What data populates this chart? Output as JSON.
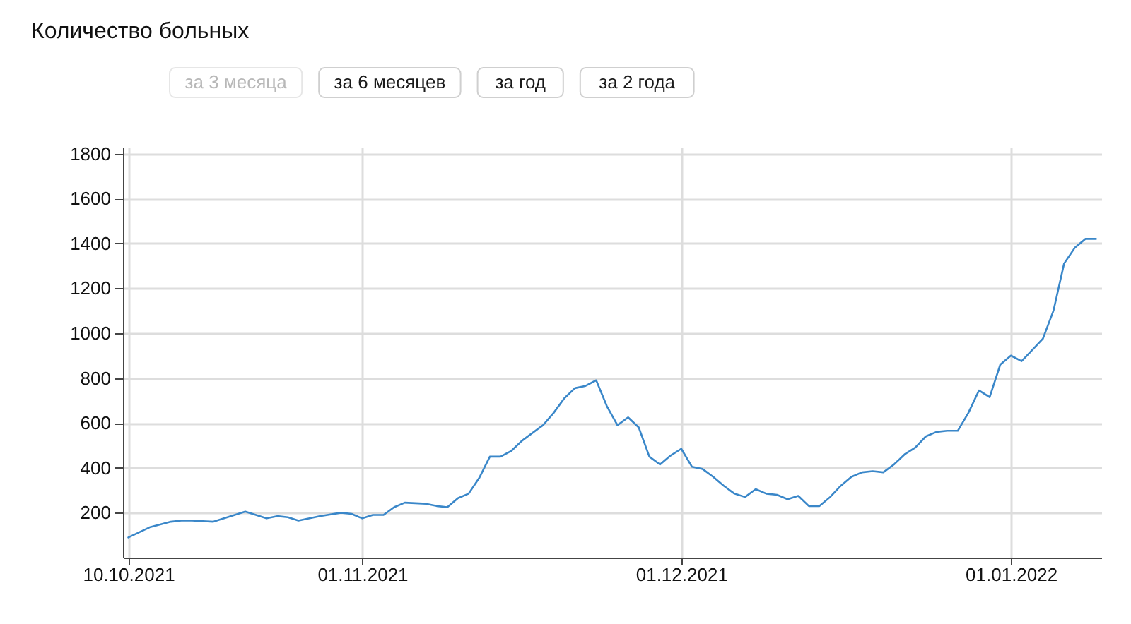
{
  "chart_data": {
    "type": "line",
    "title": "Количество больных",
    "annotations": [
      "за 3 месяца",
      "за 6 месяцев",
      "за год",
      "за 2 года"
    ],
    "x": [
      "2021-10-10",
      "2021-10-12",
      "2021-10-14",
      "2021-10-15",
      "2021-10-16",
      "2021-10-18",
      "2021-10-19",
      "2021-10-21",
      "2021-10-23",
      "2021-10-24",
      "2021-10-25",
      "2021-10-26",
      "2021-10-28",
      "2021-10-30",
      "2021-10-31",
      "2021-11-01",
      "2021-11-02",
      "2021-11-03",
      "2021-11-04",
      "2021-11-05",
      "2021-11-07",
      "2021-11-08",
      "2021-11-09",
      "2021-11-10",
      "2021-11-11",
      "2021-11-12",
      "2021-11-13",
      "2021-11-14",
      "2021-11-15",
      "2021-11-16",
      "2021-11-18",
      "2021-11-19",
      "2021-11-20",
      "2021-11-21",
      "2021-11-22",
      "2021-11-23",
      "2021-11-24",
      "2021-11-25",
      "2021-11-26",
      "2021-11-27",
      "2021-11-28",
      "2021-11-29",
      "2021-11-30",
      "2021-12-01",
      "2021-12-02",
      "2021-12-03",
      "2021-12-04",
      "2021-12-05",
      "2021-12-06",
      "2021-12-07",
      "2021-12-08",
      "2021-12-09",
      "2021-12-10",
      "2021-12-11",
      "2021-12-12",
      "2021-12-13",
      "2021-12-14",
      "2021-12-15",
      "2021-12-16",
      "2021-12-17",
      "2021-12-18",
      "2021-12-19",
      "2021-12-20",
      "2021-12-21",
      "2021-12-22",
      "2021-12-23",
      "2021-12-24",
      "2021-12-25",
      "2021-12-26",
      "2021-12-27",
      "2021-12-28",
      "2021-12-29",
      "2021-12-30",
      "2021-12-31",
      "2022-01-01",
      "2022-01-02",
      "2022-01-03",
      "2022-01-04",
      "2022-01-05",
      "2022-01-06",
      "2022-01-07",
      "2022-01-08",
      "2022-01-09"
    ],
    "series": [
      {
        "color": "#3a87c9",
        "values": [
          90,
          135,
          160,
          165,
          165,
          160,
          175,
          205,
          175,
          185,
          180,
          165,
          185,
          200,
          195,
          175,
          190,
          190,
          225,
          245,
          240,
          230,
          225,
          265,
          285,
          355,
          450,
          450,
          475,
          520,
          590,
          645,
          710,
          755,
          765,
          790,
          675,
          590,
          625,
          580,
          450,
          415,
          455,
          485,
          405,
          395,
          360,
          320,
          285,
          270,
          305,
          285,
          280,
          260,
          275,
          230,
          230,
          270,
          320,
          360,
          380,
          385,
          380,
          415,
          460,
          490,
          540,
          560,
          565,
          565,
          645,
          745,
          715,
          860,
          900,
          875,
          925,
          975,
          1100,
          1310,
          1380,
          1420,
          1420
        ]
      }
    ],
    "xlim": [
      "2021-10-09T12:00",
      "2022-01-09T12:00"
    ],
    "xticks": [
      {
        "value": "2021-10-10",
        "label": "10.10.2021"
      },
      {
        "value": "2021-11-01",
        "label": "01.11.2021"
      },
      {
        "value": "2021-12-01",
        "label": "01.12.2021"
      },
      {
        "value": "2022-01-01",
        "label": "01.01.2022"
      }
    ],
    "ylim": [
      0,
      1830
    ],
    "yticks": [
      200,
      400,
      600,
      800,
      1000,
      1200,
      1400,
      1600,
      1800
    ],
    "grid": true
  }
}
